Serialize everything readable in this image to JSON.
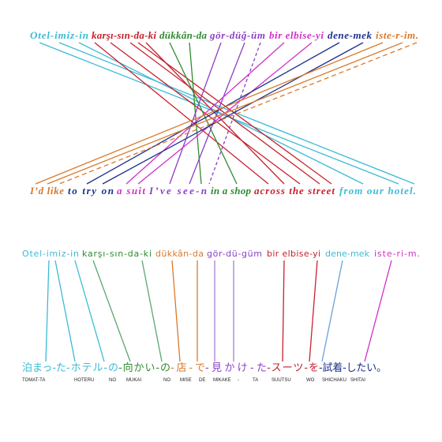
{
  "top": {
    "turkish": [
      "Otel-imiz-in",
      "karşı-sın-da-ki",
      "dükkân-da",
      "gör-düğ-üm",
      "bir elbise-yi",
      "dene-mek",
      "iste-r-im."
    ],
    "english": [
      "I’d like",
      "to try on",
      "a suit",
      "I’ve see-n",
      "in a shop",
      "across the street",
      "from our hotel."
    ]
  },
  "bottom": {
    "turkish": [
      "Otel-imiz-in",
      "karşı-sın-da-ki",
      "dükkân-da",
      "gör-dü-güm",
      "bir elbise-yi",
      "dene-mek",
      "iste-ri-m."
    ],
    "japanese": [
      "泊まっ-た",
      "-ホテル-の",
      "-向かい-の",
      "-店-で",
      "-見かけ-た",
      "-スーツ-を",
      "-試着-したい。"
    ],
    "romanization": [
      "TOMAT-TA",
      "HOTERU",
      "NO",
      "MUKAI",
      "NO",
      "MISE",
      "DE",
      "MIKAKE",
      "-",
      "TA",
      "SUUTSU",
      "WO",
      "SHICHAKU",
      "SHITAI"
    ]
  }
}
